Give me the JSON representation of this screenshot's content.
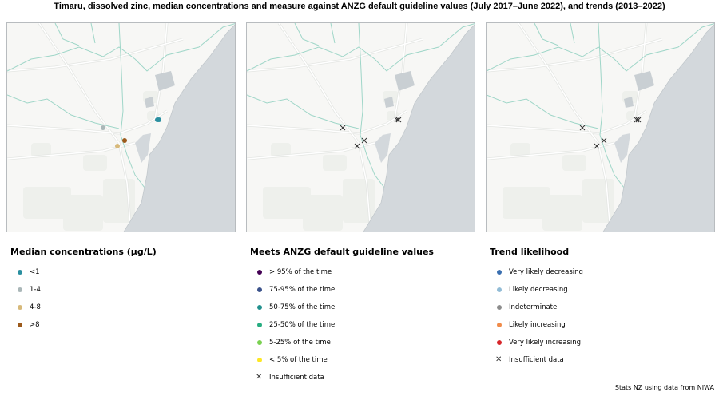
{
  "title": "Timaru, dissolved zinc, median concentrations and measure against ANZG default guideline values (July 2017–June 2022), and trends (2013–2022)",
  "credit": "Stats NZ using data from NIWA",
  "colors": {
    "sea": "#d3d8dc",
    "land": "#f7f7f5",
    "river": "#9fd6c8",
    "road": "#ffffff",
    "panel_border": "#b8bcbf"
  },
  "maps": [
    {
      "name": "median-concentrations-map",
      "sites": [
        {
          "symbol": "dot",
          "color": "#aab7b8"
        },
        {
          "symbol": "dot",
          "color": "#9c5a1c"
        },
        {
          "symbol": "dot",
          "color": "#d7b97a"
        },
        {
          "symbol": "dot",
          "color": "#2a8fa0"
        },
        {
          "symbol": "dot",
          "color": "#2a8fa0"
        }
      ]
    },
    {
      "name": "guideline-values-map",
      "sites": [
        {
          "symbol": "cross"
        },
        {
          "symbol": "cross"
        },
        {
          "symbol": "cross"
        },
        {
          "symbol": "cross"
        },
        {
          "symbol": "cross"
        }
      ]
    },
    {
      "name": "trend-likelihood-map",
      "sites": [
        {
          "symbol": "cross"
        },
        {
          "symbol": "cross"
        },
        {
          "symbol": "cross"
        },
        {
          "symbol": "cross"
        },
        {
          "symbol": "cross"
        }
      ]
    }
  ],
  "legends": [
    {
      "title": "Median concentrations (µg/L)",
      "items": [
        {
          "label": "<1",
          "symbol": "dot",
          "color": "#2a8fa0"
        },
        {
          "label": "1-4",
          "symbol": "dot",
          "color": "#aab7b8"
        },
        {
          "label": "4-8",
          "symbol": "dot",
          "color": "#d7b97a"
        },
        {
          "label": ">8",
          "symbol": "dot",
          "color": "#9c5a1c"
        }
      ]
    },
    {
      "title": "Meets ANZG default guideline values",
      "items": [
        {
          "label": "> 95% of the time",
          "symbol": "dot",
          "color": "#440154"
        },
        {
          "label": "75-95% of the time",
          "symbol": "dot",
          "color": "#3b528b"
        },
        {
          "label": "50-75% of the time",
          "symbol": "dot",
          "color": "#21908d"
        },
        {
          "label": "25-50% of the time",
          "symbol": "dot",
          "color": "#27ad81"
        },
        {
          "label": "5-25% of the time",
          "symbol": "dot",
          "color": "#7ad151"
        },
        {
          "label": "< 5% of the time",
          "symbol": "dot",
          "color": "#fde725"
        },
        {
          "label": "Insufficient data",
          "symbol": "cross"
        }
      ]
    },
    {
      "title": "Trend likelihood",
      "items": [
        {
          "label": "Very likely decreasing",
          "symbol": "dot",
          "color": "#3a6fb0"
        },
        {
          "label": "Likely decreasing",
          "symbol": "dot",
          "color": "#92bcd6"
        },
        {
          "label": "Indeterminate",
          "symbol": "dot",
          "color": "#8c8c8c"
        },
        {
          "label": "Likely increasing",
          "symbol": "dot",
          "color": "#f08b4a"
        },
        {
          "label": "Very likely increasing",
          "symbol": "dot",
          "color": "#d7262a"
        },
        {
          "label": "Insufficient data",
          "symbol": "cross"
        }
      ]
    }
  ]
}
